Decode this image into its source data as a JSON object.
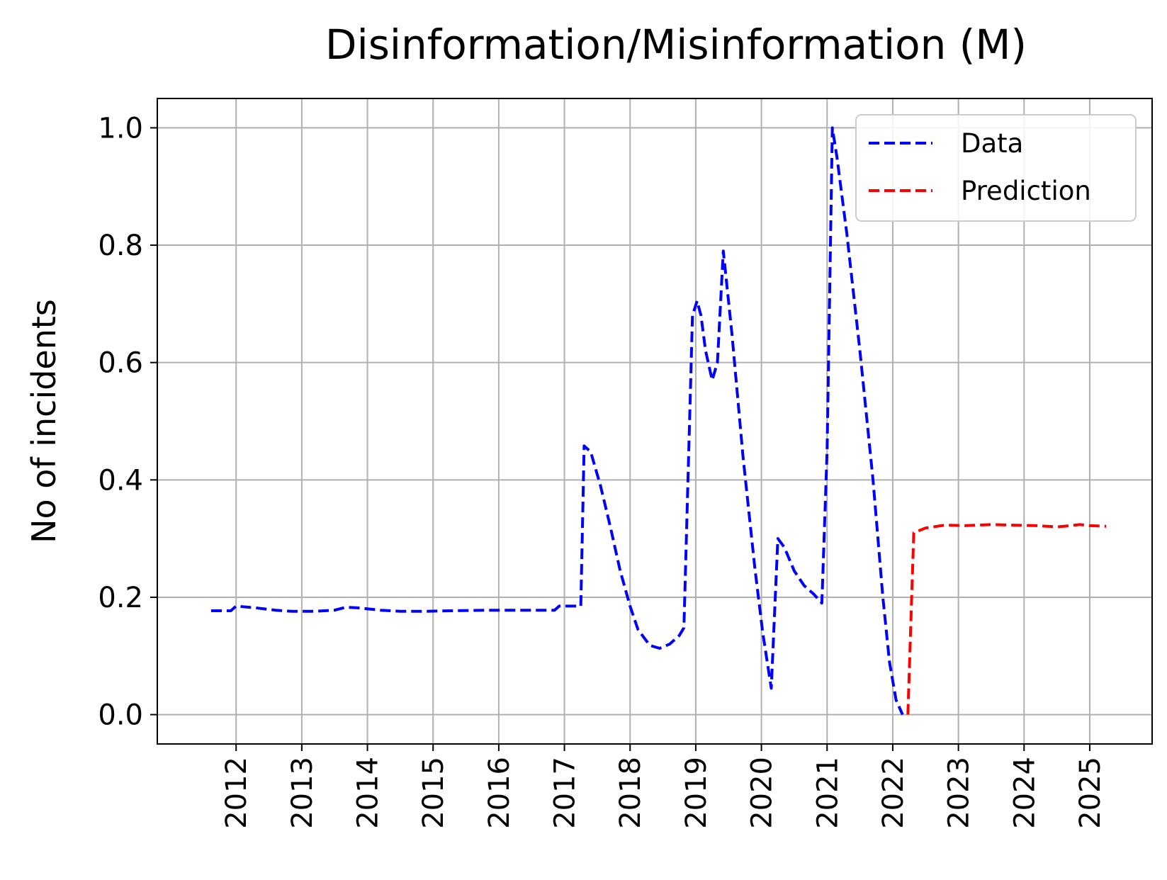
{
  "chart_data": {
    "type": "line",
    "title": "Disinformation/Misinformation (M)",
    "xlabel": "",
    "ylabel": "No of incidents",
    "xlim": [
      2010.8,
      2025.95
    ],
    "ylim": [
      -0.05,
      1.05
    ],
    "x_ticks": [
      2012,
      2013,
      2014,
      2015,
      2016,
      2017,
      2018,
      2019,
      2020,
      2021,
      2022,
      2023,
      2024,
      2025
    ],
    "y_ticks": [
      0.0,
      0.2,
      0.4,
      0.6,
      0.8,
      1.0
    ],
    "y_tick_labels": [
      "0.0",
      "0.2",
      "0.4",
      "0.6",
      "0.8",
      "1.0"
    ],
    "grid": true,
    "legend_position": "top-right",
    "series": [
      {
        "name": "Data",
        "color": "#0000ff",
        "line_style": "dashed",
        "points": [
          [
            2011.62,
            0.177
          ],
          [
            2011.92,
            0.177
          ],
          [
            2012.0,
            0.185
          ],
          [
            2012.3,
            0.182
          ],
          [
            2012.6,
            0.178
          ],
          [
            2012.85,
            0.176
          ],
          [
            2013.2,
            0.176
          ],
          [
            2013.5,
            0.178
          ],
          [
            2013.67,
            0.183
          ],
          [
            2013.85,
            0.182
          ],
          [
            2014.2,
            0.178
          ],
          [
            2014.5,
            0.176
          ],
          [
            2014.85,
            0.176
          ],
          [
            2015.3,
            0.177
          ],
          [
            2015.8,
            0.178
          ],
          [
            2016.4,
            0.178
          ],
          [
            2016.85,
            0.178
          ],
          [
            2016.92,
            0.185
          ],
          [
            2017.25,
            0.185
          ],
          [
            2017.3,
            0.458
          ],
          [
            2017.4,
            0.448
          ],
          [
            2017.55,
            0.39
          ],
          [
            2017.7,
            0.32
          ],
          [
            2017.85,
            0.245
          ],
          [
            2018.0,
            0.185
          ],
          [
            2018.12,
            0.145
          ],
          [
            2018.3,
            0.118
          ],
          [
            2018.45,
            0.113
          ],
          [
            2018.6,
            0.12
          ],
          [
            2018.75,
            0.135
          ],
          [
            2018.82,
            0.148
          ],
          [
            2018.95,
            0.68
          ],
          [
            2019.02,
            0.705
          ],
          [
            2019.08,
            0.68
          ],
          [
            2019.15,
            0.62
          ],
          [
            2019.25,
            0.57
          ],
          [
            2019.33,
            0.6
          ],
          [
            2019.42,
            0.79
          ],
          [
            2019.55,
            0.65
          ],
          [
            2019.72,
            0.44
          ],
          [
            2019.9,
            0.25
          ],
          [
            2020.02,
            0.14
          ],
          [
            2020.15,
            0.045
          ],
          [
            2020.25,
            0.3
          ],
          [
            2020.35,
            0.285
          ],
          [
            2020.5,
            0.245
          ],
          [
            2020.65,
            0.22
          ],
          [
            2020.8,
            0.205
          ],
          [
            2020.92,
            0.19
          ],
          [
            2021.0,
            0.45
          ],
          [
            2021.08,
            1.0
          ],
          [
            2021.15,
            0.95
          ],
          [
            2021.3,
            0.82
          ],
          [
            2021.5,
            0.62
          ],
          [
            2021.7,
            0.4
          ],
          [
            2021.85,
            0.2
          ],
          [
            2021.95,
            0.09
          ],
          [
            2022.05,
            0.025
          ],
          [
            2022.15,
            0.0
          ]
        ]
      },
      {
        "name": "Prediction",
        "color": "#ff0000",
        "line_style": "dashed",
        "points": [
          [
            2022.23,
            0.0
          ],
          [
            2022.32,
            0.31
          ],
          [
            2022.5,
            0.318
          ],
          [
            2022.8,
            0.323
          ],
          [
            2023.1,
            0.322
          ],
          [
            2023.5,
            0.324
          ],
          [
            2023.8,
            0.323
          ],
          [
            2024.2,
            0.322
          ],
          [
            2024.5,
            0.32
          ],
          [
            2024.7,
            0.322
          ],
          [
            2024.85,
            0.324
          ],
          [
            2025.0,
            0.322
          ],
          [
            2025.25,
            0.321
          ]
        ]
      }
    ]
  }
}
